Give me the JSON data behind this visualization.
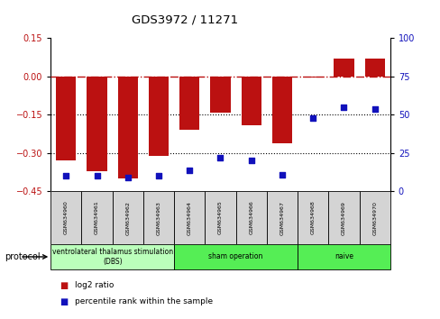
{
  "title": "GDS3972 / 11271",
  "samples": [
    "GSM634960",
    "GSM634961",
    "GSM634962",
    "GSM634963",
    "GSM634964",
    "GSM634965",
    "GSM634966",
    "GSM634967",
    "GSM634968",
    "GSM634969",
    "GSM634970"
  ],
  "log2_ratio": [
    -0.33,
    -0.37,
    -0.4,
    -0.31,
    -0.21,
    -0.14,
    -0.19,
    -0.26,
    -0.005,
    0.07,
    0.07
  ],
  "percentile_rank": [
    10,
    10,
    9,
    10,
    14,
    22,
    20,
    11,
    48,
    55,
    54
  ],
  "bar_color": "#bb1111",
  "dot_color": "#1111bb",
  "ylim_left": [
    -0.45,
    0.15
  ],
  "ylim_right": [
    0,
    100
  ],
  "yticks_left": [
    0.15,
    0.0,
    -0.15,
    -0.3,
    -0.45
  ],
  "yticks_right": [
    100,
    75,
    50,
    25,
    0
  ],
  "hline_y": 0.0,
  "dotted_lines": [
    -0.15,
    -0.3
  ],
  "groups": [
    {
      "label": "ventrolateral thalamus stimulation\n(DBS)",
      "start": 0,
      "end": 3,
      "color": "#bbffbb"
    },
    {
      "label": "sham operation",
      "start": 4,
      "end": 7,
      "color": "#55ee55"
    },
    {
      "label": "naive",
      "start": 8,
      "end": 10,
      "color": "#55ee55"
    }
  ],
  "legend_items": [
    {
      "color": "#bb1111",
      "label": "log2 ratio"
    },
    {
      "color": "#1111bb",
      "label": "percentile rank within the sample"
    }
  ],
  "bar_width": 0.65
}
